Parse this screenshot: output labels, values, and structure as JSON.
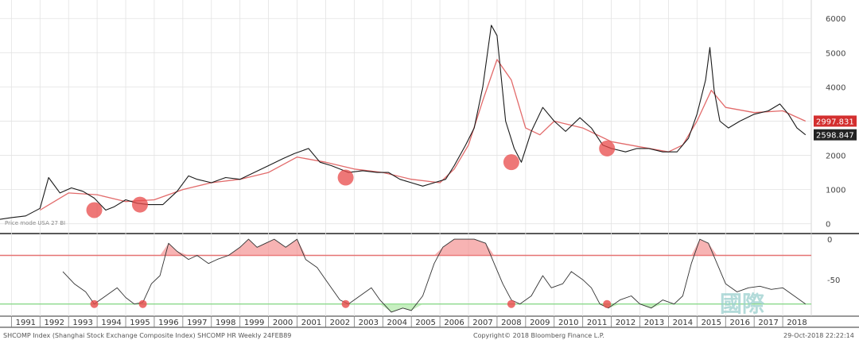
{
  "chart_data": [
    {
      "type": "line",
      "panel": "price",
      "x_unit": "year",
      "xlim": [
        1990.6,
        2019.0
      ],
      "ylim": [
        -100,
        6400
      ],
      "y_ticks": [
        0,
        1000,
        2000,
        3000,
        4000,
        5000,
        6000
      ],
      "y_tick_labels": [
        "0",
        "1000",
        "2000",
        "3000",
        "4000",
        "5000",
        "6000"
      ],
      "grid": true,
      "series": [
        {
          "color": "#1a1a1a",
          "x": [
            1990.6,
            1991.0,
            1991.5,
            1992.0,
            1992.3,
            1992.7,
            1993.1,
            1993.5,
            1993.9,
            1994.3,
            1994.6,
            1995.0,
            1995.4,
            1995.8,
            1996.3,
            1996.8,
            1997.2,
            1997.5,
            1998.0,
            1998.5,
            1999.0,
            1999.5,
            2000.0,
            2000.5,
            2000.9,
            2001.4,
            2001.8,
            2002.2,
            2002.5,
            2002.8,
            2003.3,
            2003.8,
            2004.2,
            2004.6,
            2005.0,
            2005.4,
            2005.8,
            2006.2,
            2006.5,
            2006.9,
            2007.2,
            2007.5,
            2007.8,
            2008.0,
            2008.3,
            2008.6,
            2008.85,
            2009.2,
            2009.6,
            2010.0,
            2010.4,
            2010.9,
            2011.3,
            2011.7,
            2012.0,
            2012.5,
            2012.9,
            2013.3,
            2013.8,
            2014.3,
            2014.7,
            2015.0,
            2015.3,
            2015.45,
            2015.6,
            2015.8,
            2016.1,
            2016.5,
            2017.0,
            2017.5,
            2017.9,
            2018.2,
            2018.5,
            2018.8
          ],
          "y": [
            130,
            180,
            230,
            450,
            1350,
            900,
            1050,
            950,
            750,
            400,
            500,
            700,
            600,
            560,
            560,
            950,
            1400,
            1300,
            1200,
            1350,
            1300,
            1500,
            1700,
            1900,
            2050,
            2200,
            1800,
            1700,
            1600,
            1500,
            1550,
            1500,
            1500,
            1300,
            1200,
            1100,
            1200,
            1300,
            1700,
            2300,
            2800,
            4000,
            5800,
            5500,
            3000,
            2200,
            1800,
            2700,
            3400,
            3000,
            2700,
            3100,
            2800,
            2300,
            2200,
            2100,
            2200,
            2200,
            2100,
            2100,
            2500,
            3200,
            4200,
            5150,
            3900,
            3000,
            2800,
            3000,
            3200,
            3300,
            3500,
            3200,
            2800,
            2600
          ]
        },
        {
          "color": "#e26b6b",
          "x": [
            1992.0,
            1993.0,
            1994.0,
            1995.0,
            1996.0,
            1997.0,
            1998.0,
            1999.0,
            2000.0,
            2001.0,
            2002.0,
            2003.0,
            2004.0,
            2005.0,
            2006.0,
            2006.5,
            2007.0,
            2007.5,
            2008.0,
            2008.5,
            2009.0,
            2009.5,
            2010.0,
            2011.0,
            2012.0,
            2013.0,
            2014.0,
            2014.5,
            2015.0,
            2015.5,
            2016.0,
            2017.0,
            2018.0,
            2018.8
          ],
          "y": [
            400,
            900,
            850,
            650,
            700,
            1000,
            1200,
            1300,
            1500,
            1950,
            1800,
            1600,
            1500,
            1300,
            1200,
            1600,
            2300,
            3600,
            4800,
            4200,
            2800,
            2600,
            3000,
            2800,
            2400,
            2250,
            2100,
            2300,
            3000,
            3900,
            3400,
            3250,
            3300,
            3000
          ]
        }
      ],
      "highlights": [
        {
          "x": 1993.9,
          "y": 400
        },
        {
          "x": 1995.5,
          "y": 560
        },
        {
          "x": 2002.7,
          "y": 1350
        },
        {
          "x": 2008.5,
          "y": 1800
        },
        {
          "x": 2011.85,
          "y": 2200
        }
      ],
      "value_labels": [
        {
          "text": "2997.831",
          "y": 3000,
          "color": "#d32f2f"
        },
        {
          "text": "2598.847",
          "y": 2600,
          "color": "#222222"
        }
      ]
    },
    {
      "type": "line",
      "panel": "oscillator",
      "x_unit": "year",
      "xlim": [
        1990.6,
        2019.0
      ],
      "ylim": [
        -95,
        5
      ],
      "y_ticks": [
        0,
        -50
      ],
      "y_tick_labels": [
        "0",
        "-50"
      ],
      "reference_lines": [
        {
          "y": -20,
          "color": "#e57373"
        },
        {
          "y": -80,
          "color": "#8bd98b"
        }
      ],
      "series": [
        {
          "color": "#333333",
          "x": [
            1992.8,
            1993.2,
            1993.6,
            1993.9,
            1994.3,
            1994.7,
            1995.0,
            1995.3,
            1995.6,
            1995.9,
            1996.2,
            1996.5,
            1996.8,
            1997.2,
            1997.5,
            1997.9,
            1998.2,
            1998.6,
            1999.0,
            1999.3,
            1999.6,
            1999.9,
            2000.2,
            2000.6,
            2001.0,
            2001.3,
            2001.7,
            2002.1,
            2002.5,
            2002.8,
            2003.2,
            2003.6,
            2003.9,
            2004.3,
            2004.7,
            2005.0,
            2005.4,
            2005.8,
            2006.1,
            2006.5,
            2006.8,
            2007.2,
            2007.6,
            2007.9,
            2008.2,
            2008.5,
            2008.8,
            2009.2,
            2009.6,
            2009.9,
            2010.3,
            2010.6,
            2011.0,
            2011.3,
            2011.6,
            2011.9,
            2012.3,
            2012.7,
            2013.0,
            2013.4,
            2013.8,
            2014.2,
            2014.5,
            2014.8,
            2015.1,
            2015.4,
            2015.7,
            2016.0,
            2016.4,
            2016.8,
            2017.2,
            2017.6,
            2018.0,
            2018.4,
            2018.8
          ],
          "y": [
            -40,
            -55,
            -65,
            -80,
            -70,
            -60,
            -72,
            -80,
            -78,
            -55,
            -45,
            -5,
            -15,
            -25,
            -20,
            -30,
            -25,
            -20,
            -10,
            0,
            -10,
            -5,
            0,
            -10,
            0,
            -25,
            -35,
            -55,
            -75,
            -80,
            -70,
            -60,
            -75,
            -90,
            -85,
            -88,
            -70,
            -30,
            -10,
            0,
            0,
            0,
            -5,
            -30,
            -55,
            -75,
            -80,
            -70,
            -45,
            -60,
            -55,
            -40,
            -50,
            -60,
            -80,
            -85,
            -75,
            -70,
            -80,
            -85,
            -75,
            -80,
            -70,
            -30,
            0,
            -5,
            -30,
            -55,
            -65,
            -60,
            -58,
            -62,
            -60,
            -70,
            -80
          ]
        }
      ],
      "highlights": [
        {
          "x": 1993.9,
          "y": -80
        },
        {
          "x": 1995.6,
          "y": -80
        },
        {
          "x": 2002.7,
          "y": -80
        },
        {
          "x": 2008.5,
          "y": -80
        },
        {
          "x": 2011.85,
          "y": -80
        }
      ]
    }
  ],
  "axis": {
    "years": [
      "1991",
      "1992",
      "1993",
      "1994",
      "1995",
      "1996",
      "1997",
      "1998",
      "1999",
      "2000",
      "2001",
      "2002",
      "2003",
      "2004",
      "2005",
      "2006",
      "2007",
      "2008",
      "2009",
      "2010",
      "2011",
      "2012",
      "2013",
      "2014",
      "2015",
      "2016",
      "2017",
      "2018"
    ]
  },
  "footer": {
    "left": "SHCOMP Index (Shanghai Stock Exchange Composite Index) SHCOMP HR  Weekly 24FEB89",
    "center": "Copyright© 2018 Bloomberg Finance L.P.",
    "right": "29-Oct-2018 22:22:14"
  },
  "legend_small": "Price mode  USA 27 BI",
  "watermark": "國際",
  "colors": {
    "price_line": "#1a1a1a",
    "moving_average": "#e26b6b",
    "upper_band": "#e57373",
    "lower_band": "#8bd98b",
    "highlight": "#e84a4a"
  }
}
